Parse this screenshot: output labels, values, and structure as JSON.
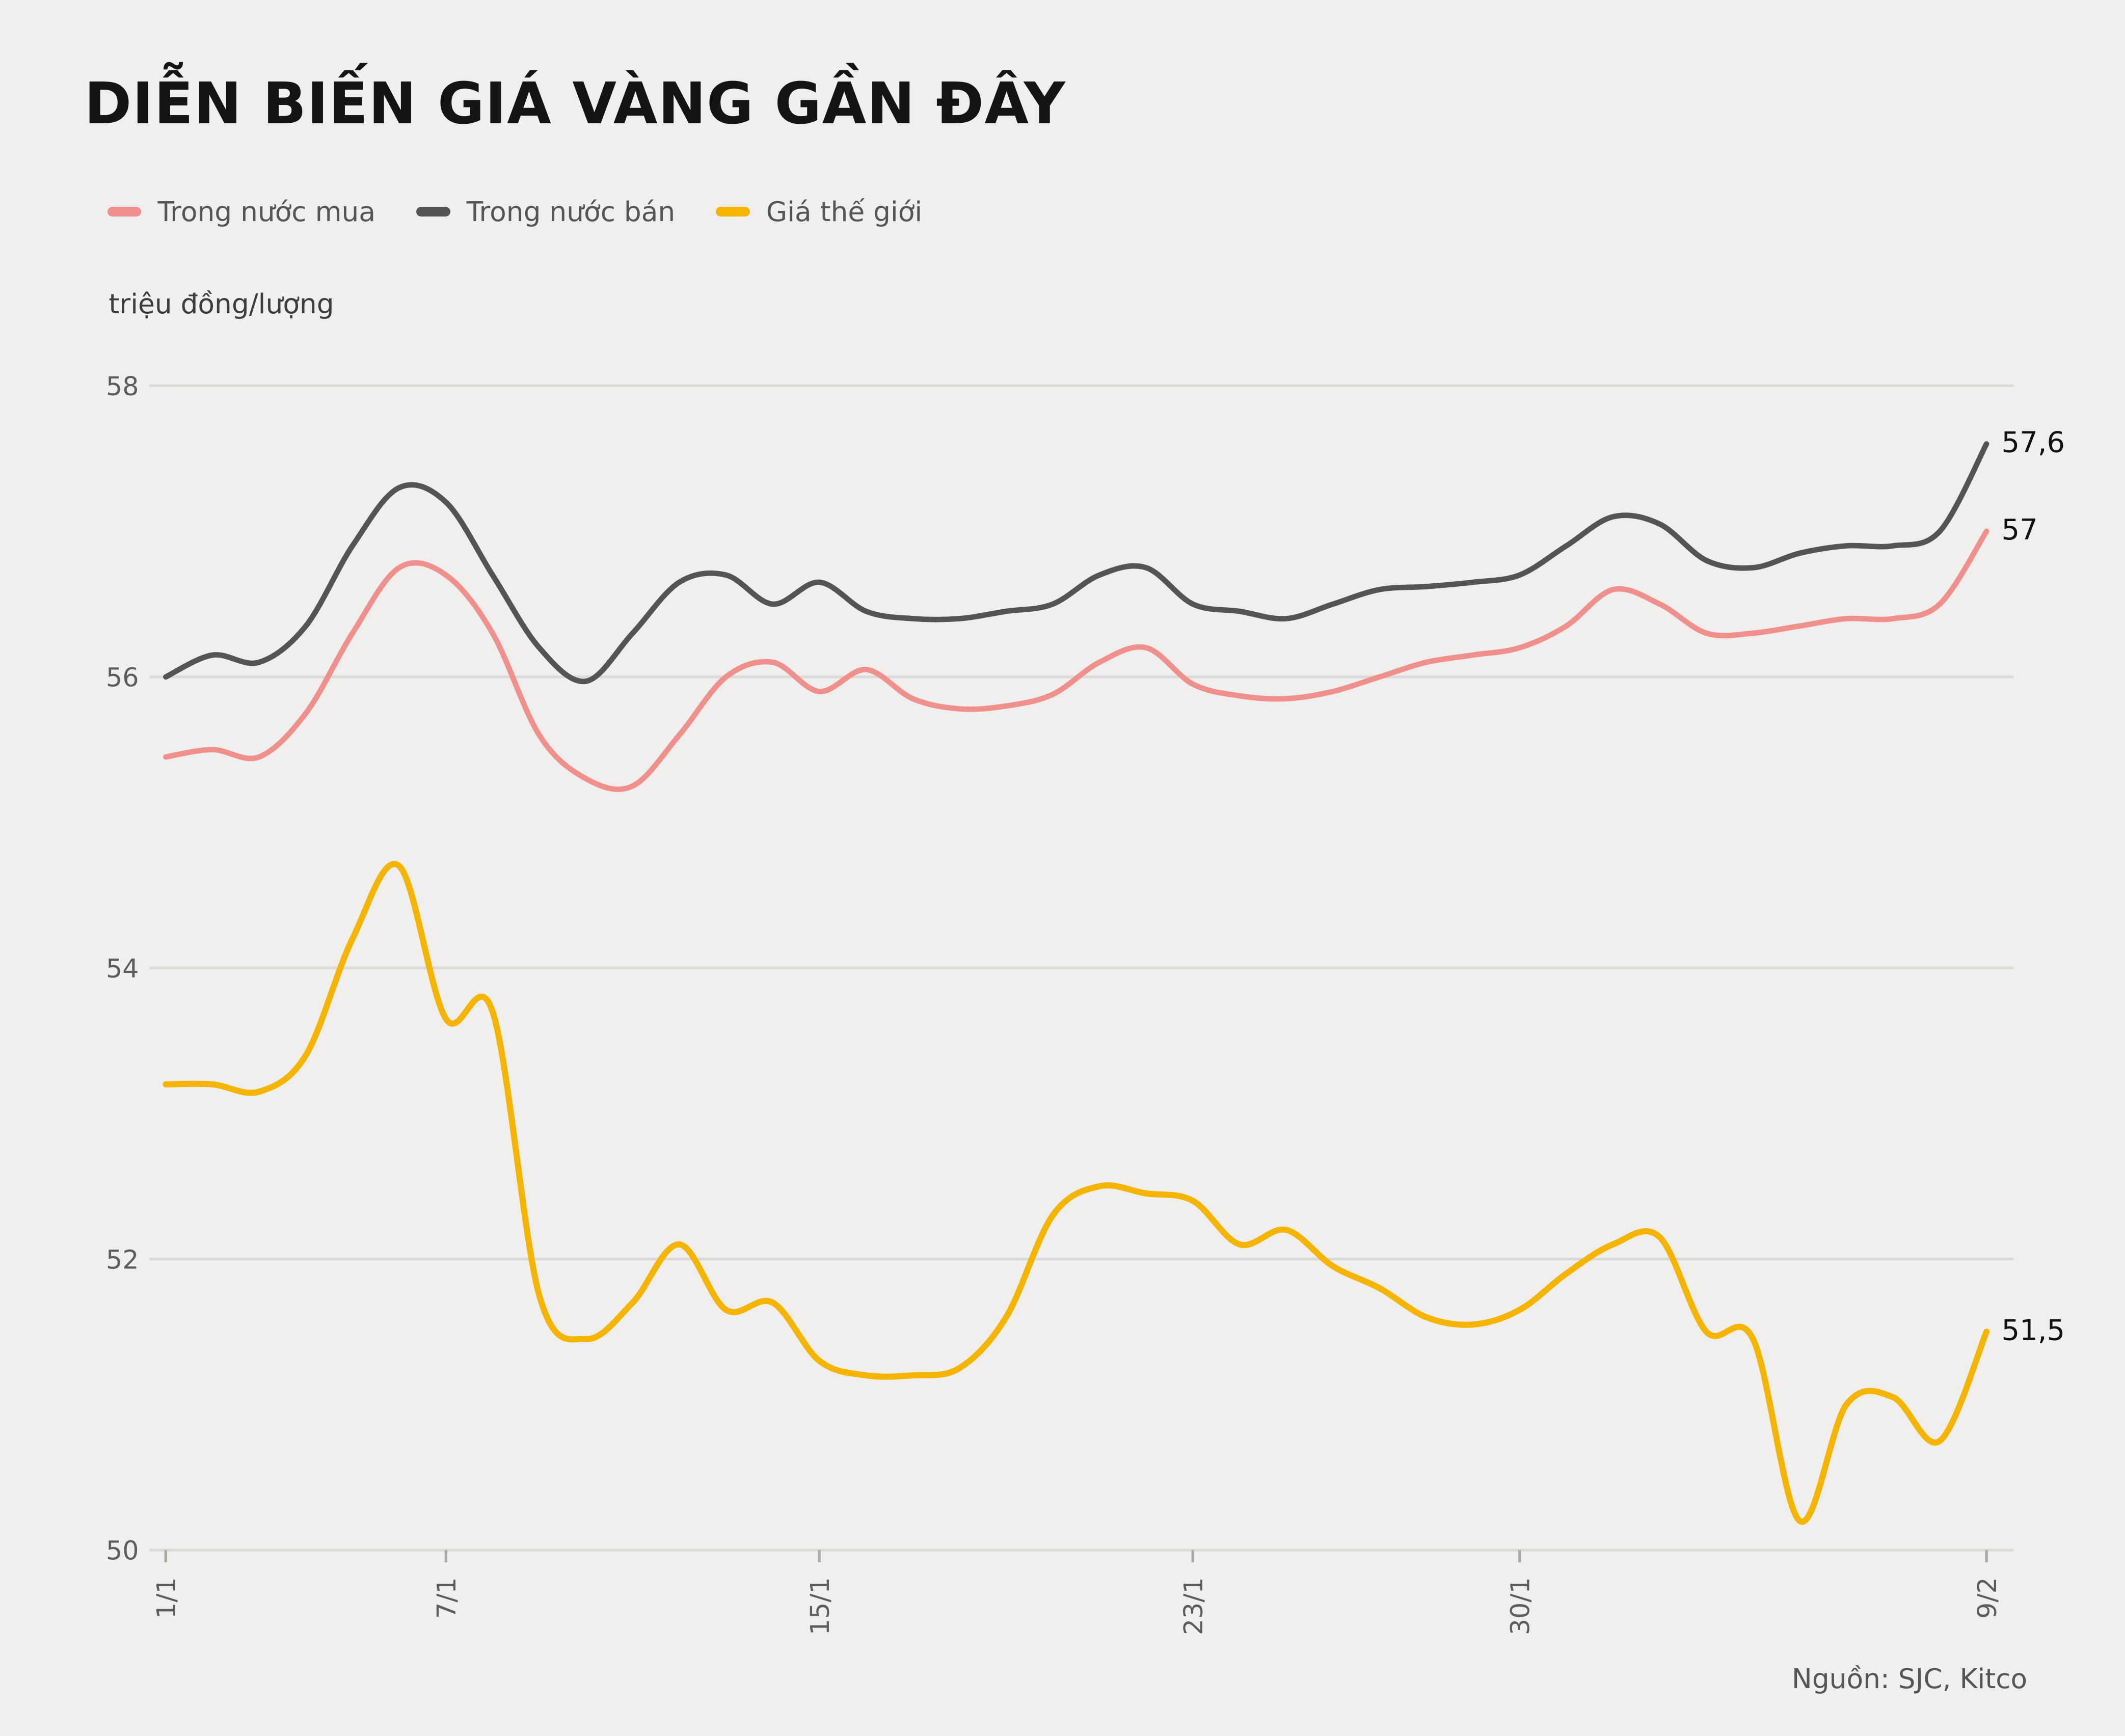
{
  "title": "DIỄN BIẾN GIÁ VÀNG GẦN ĐÂY",
  "unit_label": "triệu đồng/lượng",
  "source": "Nguồn: SJC, Kitco",
  "legend": [
    {
      "label": "Trong nước mua",
      "color": "#f0908c"
    },
    {
      "label": "Trong nước bán",
      "color": "#545454"
    },
    {
      "label": "Giá thế giới",
      "color": "#f4b400"
    }
  ],
  "chart_data": {
    "type": "line",
    "title": "DIỄN BIẾN GIÁ VÀNG GẦN ĐÂY",
    "ylabel": "triệu đồng/lượng",
    "ylim": [
      50,
      58
    ],
    "yticks": [
      50,
      52,
      54,
      56,
      58
    ],
    "grid": "horizontal",
    "legend_position": "top-left",
    "n_points": 40,
    "x_ticks": [
      {
        "index": 0,
        "label": "1/1"
      },
      {
        "index": 6,
        "label": "7/1"
      },
      {
        "index": 14,
        "label": "15/1"
      },
      {
        "index": 22,
        "label": "23/1"
      },
      {
        "index": 29,
        "label": "30/1"
      },
      {
        "index": 39,
        "label": "9/2"
      }
    ],
    "series": [
      {
        "name": "Trong nước mua",
        "color": "#f0908c",
        "end_label": "57",
        "values": [
          55.45,
          55.5,
          55.45,
          55.75,
          56.3,
          56.75,
          56.7,
          56.3,
          55.6,
          55.3,
          55.25,
          55.6,
          56.0,
          56.1,
          55.9,
          56.05,
          55.85,
          55.78,
          55.8,
          55.88,
          56.1,
          56.2,
          55.95,
          55.87,
          55.85,
          55.9,
          56.0,
          56.1,
          56.15,
          56.2,
          56.35,
          56.6,
          56.5,
          56.3,
          56.3,
          56.35,
          56.4,
          56.4,
          56.5,
          57.0
        ]
      },
      {
        "name": "Trong nước bán",
        "color": "#545454",
        "end_label": "57,6",
        "values": [
          56.0,
          56.15,
          56.1,
          56.35,
          56.9,
          57.3,
          57.2,
          56.7,
          56.2,
          55.97,
          56.3,
          56.65,
          56.7,
          56.5,
          56.65,
          56.45,
          56.4,
          56.4,
          56.45,
          56.5,
          56.7,
          56.75,
          56.5,
          56.45,
          56.4,
          56.5,
          56.6,
          56.62,
          56.65,
          56.7,
          56.9,
          57.1,
          57.05,
          56.8,
          56.75,
          56.85,
          56.9,
          56.9,
          57.0,
          57.6
        ]
      },
      {
        "name": "Giá thế giới",
        "color": "#f4b400",
        "end_label": "51,5",
        "values": [
          53.2,
          53.2,
          53.15,
          53.4,
          54.2,
          54.7,
          53.65,
          53.7,
          51.75,
          51.45,
          51.7,
          52.1,
          51.65,
          51.7,
          51.3,
          51.2,
          51.2,
          51.25,
          51.6,
          52.3,
          52.5,
          52.45,
          52.4,
          52.1,
          52.2,
          51.95,
          51.8,
          51.6,
          51.55,
          51.65,
          51.9,
          52.1,
          52.15,
          51.5,
          51.45,
          50.2,
          51.0,
          51.05,
          50.75,
          51.5
        ]
      }
    ]
  }
}
